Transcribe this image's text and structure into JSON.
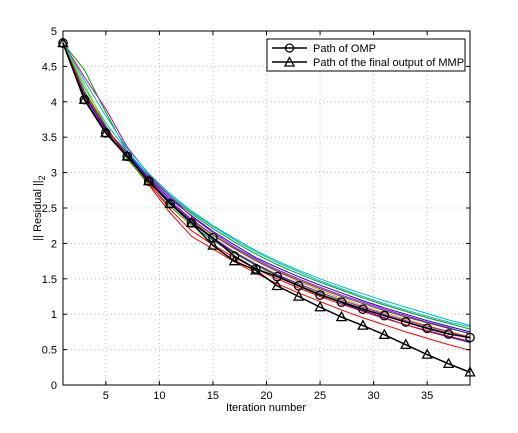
{
  "chart_data": {
    "type": "line",
    "xlabel": "Iteration number",
    "ylabel": "|| Residual ||",
    "ylabel_subscript": "2",
    "xlim": [
      1,
      39
    ],
    "ylim": [
      0,
      5
    ],
    "xticks": [
      5,
      10,
      15,
      20,
      25,
      30,
      35
    ],
    "yticks": [
      0,
      0.5,
      1,
      1.5,
      2,
      2.5,
      3,
      3.5,
      4,
      4.5,
      5
    ],
    "xtick_labels": [
      "5",
      "10",
      "15",
      "20",
      "25",
      "30",
      "35"
    ],
    "ytick_labels": [
      "0",
      "0.5",
      "1",
      "1.5",
      "2",
      "2.5",
      "3",
      "3.5",
      "4",
      "4.5",
      "5"
    ],
    "grid": true,
    "legend_position": "top-right",
    "series": [
      {
        "name": "Path of OMP",
        "marker": "circle",
        "color": "#000000",
        "x": [
          1,
          3,
          5,
          7,
          9,
          11,
          13,
          15,
          17,
          19,
          21,
          23,
          25,
          27,
          29,
          31,
          33,
          35,
          37,
          39
        ],
        "values": [
          4.83,
          4.03,
          3.56,
          3.23,
          2.88,
          2.56,
          2.29,
          2.08,
          1.82,
          1.64,
          1.53,
          1.4,
          1.27,
          1.17,
          1.07,
          0.98,
          0.89,
          0.8,
          0.72,
          0.67
        ]
      },
      {
        "name": "Path of the final output of MMP",
        "marker": "triangle",
        "color": "#000000",
        "x": [
          1,
          3,
          5,
          7,
          9,
          11,
          13,
          15,
          17,
          19,
          21,
          23,
          25,
          27,
          29,
          31,
          33,
          35,
          37,
          39
        ],
        "values": [
          4.83,
          4.03,
          3.56,
          3.23,
          2.88,
          2.56,
          2.29,
          1.97,
          1.75,
          1.62,
          1.4,
          1.25,
          1.1,
          0.96,
          0.84,
          0.71,
          0.57,
          0.43,
          0.3,
          0.18
        ]
      }
    ],
    "background_paths": [
      {
        "color": "#0000ff",
        "x": [
          1,
          3,
          5,
          7,
          9,
          11,
          13,
          15,
          17,
          19,
          21,
          23,
          25,
          27,
          29,
          31,
          33,
          35,
          37,
          39
        ],
        "values": [
          4.83,
          4.1,
          3.6,
          3.25,
          2.93,
          2.63,
          2.39,
          2.17,
          1.98,
          1.8,
          1.66,
          1.53,
          1.41,
          1.3,
          1.19,
          1.09,
          1.0,
          0.91,
          0.83,
          0.75
        ]
      },
      {
        "color": "#00a000",
        "x": [
          1,
          3,
          5,
          7,
          9,
          11,
          13,
          15,
          17,
          19,
          21,
          23,
          25,
          27,
          29,
          31,
          33,
          35,
          37,
          39
        ],
        "values": [
          4.83,
          4.45,
          3.85,
          3.3,
          2.95,
          2.66,
          2.42,
          2.21,
          2.02,
          1.85,
          1.7,
          1.57,
          1.45,
          1.34,
          1.23,
          1.13,
          1.04,
          0.95,
          0.87,
          0.79
        ]
      },
      {
        "color": "#ff0000",
        "x": [
          1,
          3,
          5,
          7,
          9,
          11,
          13,
          15,
          17,
          19,
          21,
          23,
          25,
          27,
          29,
          31,
          33,
          35,
          37,
          39
        ],
        "values": [
          4.83,
          4.05,
          3.58,
          3.2,
          2.83,
          2.43,
          2.1,
          1.92,
          1.74,
          1.58,
          1.43,
          1.3,
          1.18,
          1.06,
          0.95,
          0.85,
          0.75,
          0.66,
          0.57,
          0.49
        ]
      },
      {
        "color": "#00bfbf",
        "x": [
          1,
          3,
          5,
          7,
          9,
          11,
          13,
          15,
          17,
          19,
          21,
          23,
          25,
          27,
          29,
          31,
          33,
          35,
          37,
          39
        ],
        "values": [
          4.83,
          4.2,
          3.7,
          3.3,
          2.96,
          2.68,
          2.44,
          2.24,
          2.05,
          1.88,
          1.73,
          1.6,
          1.47,
          1.36,
          1.25,
          1.15,
          1.06,
          0.97,
          0.89,
          0.82
        ]
      },
      {
        "color": "#bf00bf",
        "x": [
          1,
          3,
          5,
          7,
          9,
          11,
          13,
          15,
          17,
          19,
          21,
          23,
          25,
          27,
          29,
          31,
          33,
          35,
          37,
          39
        ],
        "values": [
          4.83,
          4.35,
          3.9,
          3.36,
          2.98,
          2.66,
          2.38,
          2.15,
          1.95,
          1.78,
          1.63,
          1.5,
          1.38,
          1.27,
          1.17,
          1.07,
          0.98,
          0.89,
          0.81,
          0.72
        ]
      },
      {
        "color": "#bfbf00",
        "x": [
          1,
          3,
          5,
          7,
          9,
          11,
          13,
          15,
          17,
          19,
          21,
          23,
          25,
          27,
          29,
          31,
          33,
          35,
          37,
          39
        ],
        "values": [
          4.83,
          4.25,
          3.65,
          3.18,
          2.86,
          2.58,
          2.33,
          2.11,
          1.92,
          1.75,
          1.6,
          1.46,
          1.34,
          1.22,
          1.12,
          1.02,
          0.93,
          0.84,
          0.76,
          0.68
        ]
      },
      {
        "color": "#404040",
        "x": [
          1,
          3,
          5,
          7,
          9,
          11,
          13,
          15,
          17,
          19,
          21,
          23,
          25,
          27,
          29,
          31,
          33,
          35,
          37,
          39
        ],
        "values": [
          4.83,
          4.02,
          3.55,
          3.22,
          2.9,
          2.6,
          2.34,
          2.12,
          1.93,
          1.76,
          1.61,
          1.48,
          1.36,
          1.25,
          1.15,
          1.05,
          0.96,
          0.88,
          0.8,
          0.73
        ]
      },
      {
        "color": "#0000ff",
        "x": [
          1,
          3,
          5,
          7,
          9,
          11,
          13,
          15,
          17,
          19,
          21,
          23,
          25,
          27,
          29,
          31,
          33,
          35,
          37,
          39
        ],
        "values": [
          4.83,
          4.08,
          3.62,
          3.28,
          2.92,
          2.58,
          2.3,
          2.06,
          1.87,
          1.7,
          1.55,
          1.41,
          1.28,
          1.16,
          1.05,
          0.95,
          0.85,
          0.76,
          0.68,
          0.6
        ]
      },
      {
        "color": "#00a000",
        "x": [
          1,
          3,
          5,
          7,
          9,
          11,
          13,
          15,
          17,
          19,
          21,
          23,
          25,
          27,
          29,
          31,
          33,
          35,
          37,
          39
        ],
        "values": [
          4.83,
          4.15,
          3.66,
          3.2,
          2.84,
          2.52,
          2.26,
          2.04,
          1.86,
          1.69,
          1.54,
          1.41,
          1.29,
          1.18,
          1.08,
          0.98,
          0.89,
          0.81,
          0.73,
          0.66
        ]
      },
      {
        "color": "#ff0000",
        "x": [
          1,
          3,
          5,
          7,
          9,
          11,
          13,
          15,
          17,
          19,
          21,
          23,
          25,
          27,
          29,
          31,
          33,
          35,
          37,
          39
        ],
        "values": [
          4.83,
          4.12,
          3.64,
          3.24,
          2.86,
          2.48,
          2.18,
          1.98,
          1.8,
          1.64,
          1.5,
          1.37,
          1.25,
          1.14,
          1.04,
          0.94,
          0.85,
          0.77,
          0.69,
          0.62
        ]
      },
      {
        "color": "#00bfbf",
        "x": [
          1,
          3,
          5,
          7,
          9,
          11,
          13,
          15,
          17,
          19,
          21,
          23,
          25,
          27,
          29,
          31,
          33,
          35,
          37,
          39
        ],
        "values": [
          4.83,
          4.3,
          3.8,
          3.34,
          2.99,
          2.7,
          2.46,
          2.25,
          2.07,
          1.9,
          1.75,
          1.62,
          1.5,
          1.39,
          1.29,
          1.19,
          1.1,
          1.01,
          0.92,
          0.84
        ]
      },
      {
        "color": "#bf00bf",
        "x": [
          1,
          3,
          5,
          7,
          9,
          11,
          13,
          15,
          17,
          19,
          21,
          23,
          25,
          27,
          29,
          31,
          33,
          35,
          37,
          39
        ],
        "values": [
          4.83,
          4.05,
          3.57,
          3.24,
          2.91,
          2.6,
          2.32,
          2.08,
          1.88,
          1.71,
          1.56,
          1.43,
          1.31,
          1.2,
          1.1,
          1.0,
          0.91,
          0.83,
          0.75,
          0.67
        ]
      }
    ]
  }
}
